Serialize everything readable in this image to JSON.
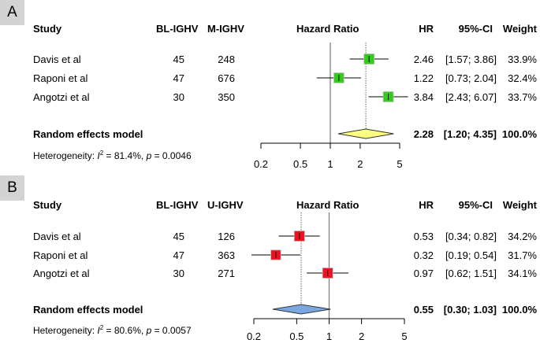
{
  "chart_data": [
    {
      "type": "forest",
      "panel_label": "A",
      "headers": {
        "study": "Study",
        "n1": "BL-IGHV",
        "n2": "M-IGHV",
        "plot": "Hazard Ratio",
        "hr": "HR",
        "ci": "95%-CI",
        "weight": "Weight"
      },
      "studies": [
        {
          "name": "Davis et al",
          "n1": "45",
          "n2": "248",
          "hr": 2.46,
          "lo": 1.57,
          "hi": 3.86,
          "hr_text": "2.46",
          "ci_text": "[1.57; 3.86]",
          "weight_text": "33.9%"
        },
        {
          "name": "Raponi et al",
          "n1": "47",
          "n2": "676",
          "hr": 1.22,
          "lo": 0.73,
          "hi": 2.04,
          "hr_text": "1.22",
          "ci_text": "[0.73; 2.04]",
          "weight_text": "32.4%"
        },
        {
          "name": "Angotzi et al",
          "n1": "30",
          "n2": "350",
          "hr": 3.84,
          "lo": 2.43,
          "hi": 6.07,
          "hr_text": "3.84",
          "ci_text": "[2.43; 6.07]",
          "weight_text": "33.7%"
        }
      ],
      "pooled": {
        "label": "Random effects model",
        "hr": 2.28,
        "lo": 1.2,
        "hi": 4.35,
        "hr_text": "2.28",
        "ci_text": "[1.20; 4.35]",
        "weight_text": "100.0%"
      },
      "heterogeneity": {
        "prefix": "Heterogeneity: ",
        "i2_symbol": "I",
        "sup": "2",
        "i2_text": " = 81.4%, ",
        "p_symbol": "p",
        "p_text": " = 0.0046"
      },
      "xticks": [
        0.2,
        0.5,
        1,
        2,
        5
      ],
      "xtick_labels": [
        "0.2",
        "0.5",
        "1",
        "2",
        "5"
      ],
      "xscale": "log",
      "xlim": [
        0.2,
        5
      ],
      "colors": {
        "square": "#33cc1a",
        "diamond": "#ffff80"
      }
    },
    {
      "type": "forest",
      "panel_label": "B",
      "headers": {
        "study": "Study",
        "n1": "BL-IGHV",
        "n2": "U-IGHV",
        "plot": "Hazard Ratio",
        "hr": "HR",
        "ci": "95%-CI",
        "weight": "Weight"
      },
      "studies": [
        {
          "name": "Davis et al",
          "n1": "45",
          "n2": "126",
          "hr": 0.53,
          "lo": 0.34,
          "hi": 0.82,
          "hr_text": "0.53",
          "ci_text": "[0.34; 0.82]",
          "weight_text": "34.2%"
        },
        {
          "name": "Raponi et al",
          "n1": "47",
          "n2": "363",
          "hr": 0.32,
          "lo": 0.19,
          "hi": 0.54,
          "hr_text": "0.32",
          "ci_text": "[0.19; 0.54]",
          "weight_text": "31.7%"
        },
        {
          "name": "Angotzi et al",
          "n1": "30",
          "n2": "271",
          "hr": 0.97,
          "lo": 0.62,
          "hi": 1.51,
          "hr_text": "0.97",
          "ci_text": "[0.62; 1.51]",
          "weight_text": "34.1%"
        }
      ],
      "pooled": {
        "label": "Random effects model",
        "hr": 0.55,
        "lo": 0.3,
        "hi": 1.03,
        "hr_text": "0.55",
        "ci_text": "[0.30; 1.03]",
        "weight_text": "100.0%"
      },
      "heterogeneity": {
        "prefix": "Heterogeneity: ",
        "i2_symbol": "I",
        "sup": "2",
        "i2_text": " = 80.6%, ",
        "p_symbol": "p",
        "p_text": " = 0.0057"
      },
      "xticks": [
        0.2,
        0.5,
        1,
        2,
        5
      ],
      "xtick_labels": [
        "0.2",
        "0.5",
        "1",
        "2",
        "5"
      ],
      "xscale": "log",
      "xlim": [
        0.2,
        5
      ],
      "colors": {
        "square": "#ee1122",
        "diamond": "#7ba7e0"
      }
    }
  ]
}
